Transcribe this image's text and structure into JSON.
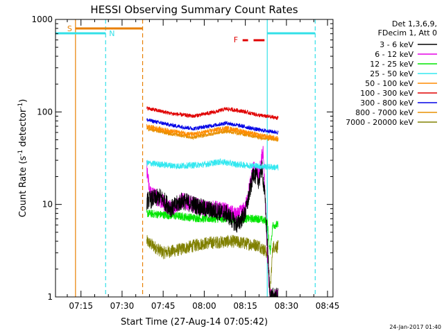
{
  "chart_data": {
    "type": "line",
    "title": "HESSI Observing Summary Count Rates",
    "xlabel": "Start Time (27-Aug-14 07:05:42)",
    "ylabel_main": "Count Rate (s",
    "ylabel_sup1": "-1",
    "ylabel_mid": " detector",
    "ylabel_sup2": "-1",
    "ylabel_end": ")",
    "y_scale": "log",
    "ylim": [
      1,
      1000
    ],
    "xlim": [
      "07:05:42",
      "08:47:00"
    ],
    "x_ticks": [
      "07:15",
      "07:30",
      "07:45",
      "08:00",
      "08:15",
      "08:30",
      "08:45"
    ],
    "y_ticks": [
      "1",
      "10",
      "100",
      "1000"
    ],
    "legend_header": [
      "Det 1,3,6,9,",
      "FDecim 1, Att 0"
    ],
    "legend_placement": "right",
    "timestamp": "24-Jan-2017 01:40",
    "flags": {
      "saa": {
        "label": "S",
        "color": "#e87f00",
        "start": "07:13:00",
        "end": "07:37:30",
        "line_end": "07:37:30"
      },
      "night": {
        "label": "N",
        "color": "#33e0e8",
        "segments": [
          [
            "07:05:42",
            "07:24:00"
          ],
          [
            "08:23:00",
            "08:40:30"
          ]
        ]
      },
      "flare": {
        "label": "F",
        "color": "#e00000",
        "segments": [
          [
            "08:14:00",
            "08:16:00"
          ],
          [
            "08:18:00",
            "08:22:00"
          ]
        ]
      }
    },
    "vlines": [
      {
        "time": "07:13:00",
        "color": "#e87f00",
        "style": "solid"
      },
      {
        "time": "07:24:00",
        "color": "#33e0e8",
        "style": "dashed"
      },
      {
        "time": "07:37:30",
        "color": "#e87f00",
        "style": "dashed"
      },
      {
        "time": "08:23:00",
        "color": "#33e0e8",
        "style": "solid"
      },
      {
        "time": "08:40:30",
        "color": "#33e0e8",
        "style": "dashed"
      }
    ],
    "data_start": "07:39:00",
    "data_end": "08:27:00",
    "series": [
      {
        "name": "3 - 6 keV",
        "color": "#000000",
        "anchors": [
          [
            "07:39:00",
            11
          ],
          [
            "07:44:00",
            12
          ],
          [
            "07:48:00",
            9
          ],
          [
            "07:52:00",
            11
          ],
          [
            "07:56:00",
            10
          ],
          [
            "08:00:00",
            9
          ],
          [
            "08:04:00",
            8.5
          ],
          [
            "08:08:00",
            8
          ],
          [
            "08:12:00",
            6
          ],
          [
            "08:15:00",
            8
          ],
          [
            "08:18:00",
            22
          ],
          [
            "08:20:00",
            18
          ],
          [
            "08:21:00",
            25
          ],
          [
            "08:22:00",
            14
          ],
          [
            "08:23:00",
            4
          ],
          [
            "08:24:00",
            1
          ],
          [
            "08:27:00",
            1
          ]
        ]
      },
      {
        "name": "6 - 12 keV",
        "color": "#e600e6",
        "anchors": [
          [
            "07:39:00",
            25
          ],
          [
            "07:40:00",
            14
          ],
          [
            "07:44:00",
            11
          ],
          [
            "07:48:00",
            9
          ],
          [
            "07:52:00",
            11
          ],
          [
            "07:56:00",
            10
          ],
          [
            "08:00:00",
            9
          ],
          [
            "08:04:00",
            9
          ],
          [
            "08:08:00",
            8.5
          ],
          [
            "08:12:00",
            7.5
          ],
          [
            "08:15:00",
            9
          ],
          [
            "08:18:00",
            25
          ],
          [
            "08:20:00",
            20
          ],
          [
            "08:21:30",
            40
          ],
          [
            "08:22:00",
            18
          ],
          [
            "08:23:00",
            3
          ],
          [
            "08:24:00",
            1
          ],
          [
            "08:27:00",
            1
          ]
        ]
      },
      {
        "name": "12 - 25 keV",
        "color": "#00e600",
        "anchors": [
          [
            "07:39:00",
            8
          ],
          [
            "07:50:00",
            7.5
          ],
          [
            "08:00:00",
            7
          ],
          [
            "08:10:00",
            7
          ],
          [
            "08:20:00",
            7
          ],
          [
            "08:23:00",
            6.5
          ],
          [
            "08:24:00",
            3
          ],
          [
            "08:25:00",
            6
          ],
          [
            "08:27:00",
            6
          ]
        ]
      },
      {
        "name": "25 - 50 keV",
        "color": "#33e8f0",
        "anchors": [
          [
            "07:39:00",
            28
          ],
          [
            "07:50:00",
            26
          ],
          [
            "08:00:00",
            27
          ],
          [
            "08:06:00",
            29
          ],
          [
            "08:12:00",
            27
          ],
          [
            "08:20:00",
            26
          ],
          [
            "08:27:00",
            25
          ]
        ]
      },
      {
        "name": "50 - 100 keV",
        "color": "#ff8c00",
        "anchors": [
          [
            "07:39:00",
            70
          ],
          [
            "07:48:00",
            62
          ],
          [
            "07:56:00",
            57
          ],
          [
            "08:04:00",
            64
          ],
          [
            "08:08:00",
            67
          ],
          [
            "08:14:00",
            62
          ],
          [
            "08:20:00",
            56
          ],
          [
            "08:27:00",
            52
          ]
        ]
      },
      {
        "name": "100 - 300 keV",
        "color": "#e00000",
        "anchors": [
          [
            "07:39:00",
            110
          ],
          [
            "07:48:00",
            96
          ],
          [
            "07:56:00",
            90
          ],
          [
            "08:04:00",
            100
          ],
          [
            "08:08:00",
            108
          ],
          [
            "08:14:00",
            102
          ],
          [
            "08:20:00",
            92
          ],
          [
            "08:27:00",
            86
          ]
        ]
      },
      {
        "name": "300 - 800 keV",
        "color": "#0000e6",
        "anchors": [
          [
            "07:39:00",
            82
          ],
          [
            "07:48:00",
            72
          ],
          [
            "07:56:00",
            66
          ],
          [
            "08:04:00",
            72
          ],
          [
            "08:08:00",
            76
          ],
          [
            "08:14:00",
            70
          ],
          [
            "08:20:00",
            64
          ],
          [
            "08:27:00",
            60
          ]
        ]
      },
      {
        "name": "800 - 7000 keV",
        "color": "#e89000",
        "anchors": [
          [
            "07:39:00",
            66
          ],
          [
            "07:48:00",
            58
          ],
          [
            "07:56:00",
            53
          ],
          [
            "08:04:00",
            59
          ],
          [
            "08:08:00",
            62
          ],
          [
            "08:14:00",
            58
          ],
          [
            "08:20:00",
            53
          ],
          [
            "08:27:00",
            50
          ]
        ]
      },
      {
        "name": "7000 - 20000 keV",
        "color": "#808000",
        "anchors": [
          [
            "07:39:00",
            4
          ],
          [
            "07:45:00",
            3
          ],
          [
            "07:50:00",
            3.2
          ],
          [
            "07:55:00",
            3.5
          ],
          [
            "08:00:00",
            3.8
          ],
          [
            "08:10:00",
            4
          ],
          [
            "08:20:00",
            3.6
          ],
          [
            "08:23:00",
            3
          ],
          [
            "08:24:00",
            1
          ],
          [
            "08:25:00",
            3.5
          ],
          [
            "08:27:00",
            3.5
          ]
        ]
      }
    ]
  }
}
